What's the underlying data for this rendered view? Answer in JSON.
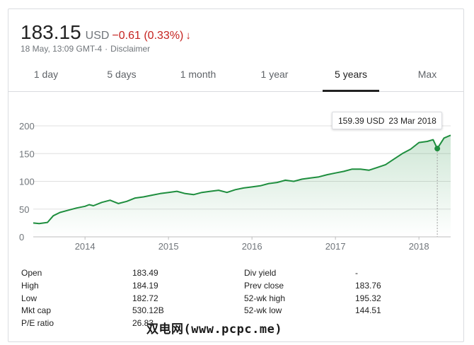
{
  "quote": {
    "price": "183.15",
    "currency": "USD",
    "change": "−0.61 (0.33%)",
    "arrow": "↓",
    "timestamp": "18 May, 13:09 GMT-4",
    "separator": "·",
    "disclaimer": "Disclaimer",
    "change_color": "#c5221f"
  },
  "tabs": [
    {
      "label": "1 day",
      "active": false
    },
    {
      "label": "5 days",
      "active": false
    },
    {
      "label": "1 month",
      "active": false
    },
    {
      "label": "1 year",
      "active": false
    },
    {
      "label": "5 years",
      "active": true
    },
    {
      "label": "Max",
      "active": false
    }
  ],
  "tooltip": {
    "price": "159.39 USD",
    "date": "23 Mar 2018"
  },
  "stats": {
    "left": [
      {
        "label": "Open",
        "value": "183.49"
      },
      {
        "label": "High",
        "value": "184.19"
      },
      {
        "label": "Low",
        "value": "182.72"
      },
      {
        "label": "Mkt cap",
        "value": "530.12B"
      },
      {
        "label": "P/E ratio",
        "value": "26.83"
      }
    ],
    "right": [
      {
        "label": "Div yield",
        "value": "-"
      },
      {
        "label": "Prev close",
        "value": "183.76"
      },
      {
        "label": "52-wk high",
        "value": "195.32"
      },
      {
        "label": "52-wk low",
        "value": "144.51"
      }
    ]
  },
  "watermark": "双电网(www.pcpc.me)",
  "chart_data": {
    "type": "area",
    "line_color": "#1e8e3e",
    "ylim": [
      0,
      200
    ],
    "y_ticks": [
      "0",
      "50",
      "100",
      "150",
      "200"
    ],
    "x_ticks": [
      "2014",
      "2015",
      "2016",
      "2017",
      "2018"
    ],
    "grid": true,
    "x": [
      2013.38,
      2013.45,
      2013.55,
      2013.62,
      2013.7,
      2013.8,
      2013.9,
      2014.0,
      2014.05,
      2014.1,
      2014.2,
      2014.3,
      2014.4,
      2014.5,
      2014.6,
      2014.7,
      2014.8,
      2014.9,
      2015.0,
      2015.1,
      2015.2,
      2015.3,
      2015.4,
      2015.5,
      2015.6,
      2015.7,
      2015.8,
      2015.9,
      2016.0,
      2016.1,
      2016.2,
      2016.3,
      2016.4,
      2016.5,
      2016.6,
      2016.7,
      2016.8,
      2016.9,
      2017.0,
      2017.1,
      2017.2,
      2017.3,
      2017.4,
      2017.5,
      2017.6,
      2017.7,
      2017.8,
      2017.9,
      2018.0,
      2018.1,
      2018.17,
      2018.22,
      2018.3,
      2018.38
    ],
    "series": [
      {
        "values": [
          25,
          24,
          26,
          38,
          44,
          48,
          52,
          55,
          58,
          56,
          62,
          66,
          60,
          64,
          70,
          72,
          75,
          78,
          80,
          82,
          78,
          76,
          80,
          82,
          84,
          80,
          85,
          88,
          90,
          92,
          96,
          98,
          102,
          100,
          104,
          106,
          108,
          112,
          115,
          118,
          122,
          122,
          120,
          125,
          130,
          140,
          150,
          158,
          170,
          172,
          175,
          159,
          178,
          183
        ]
      }
    ]
  }
}
